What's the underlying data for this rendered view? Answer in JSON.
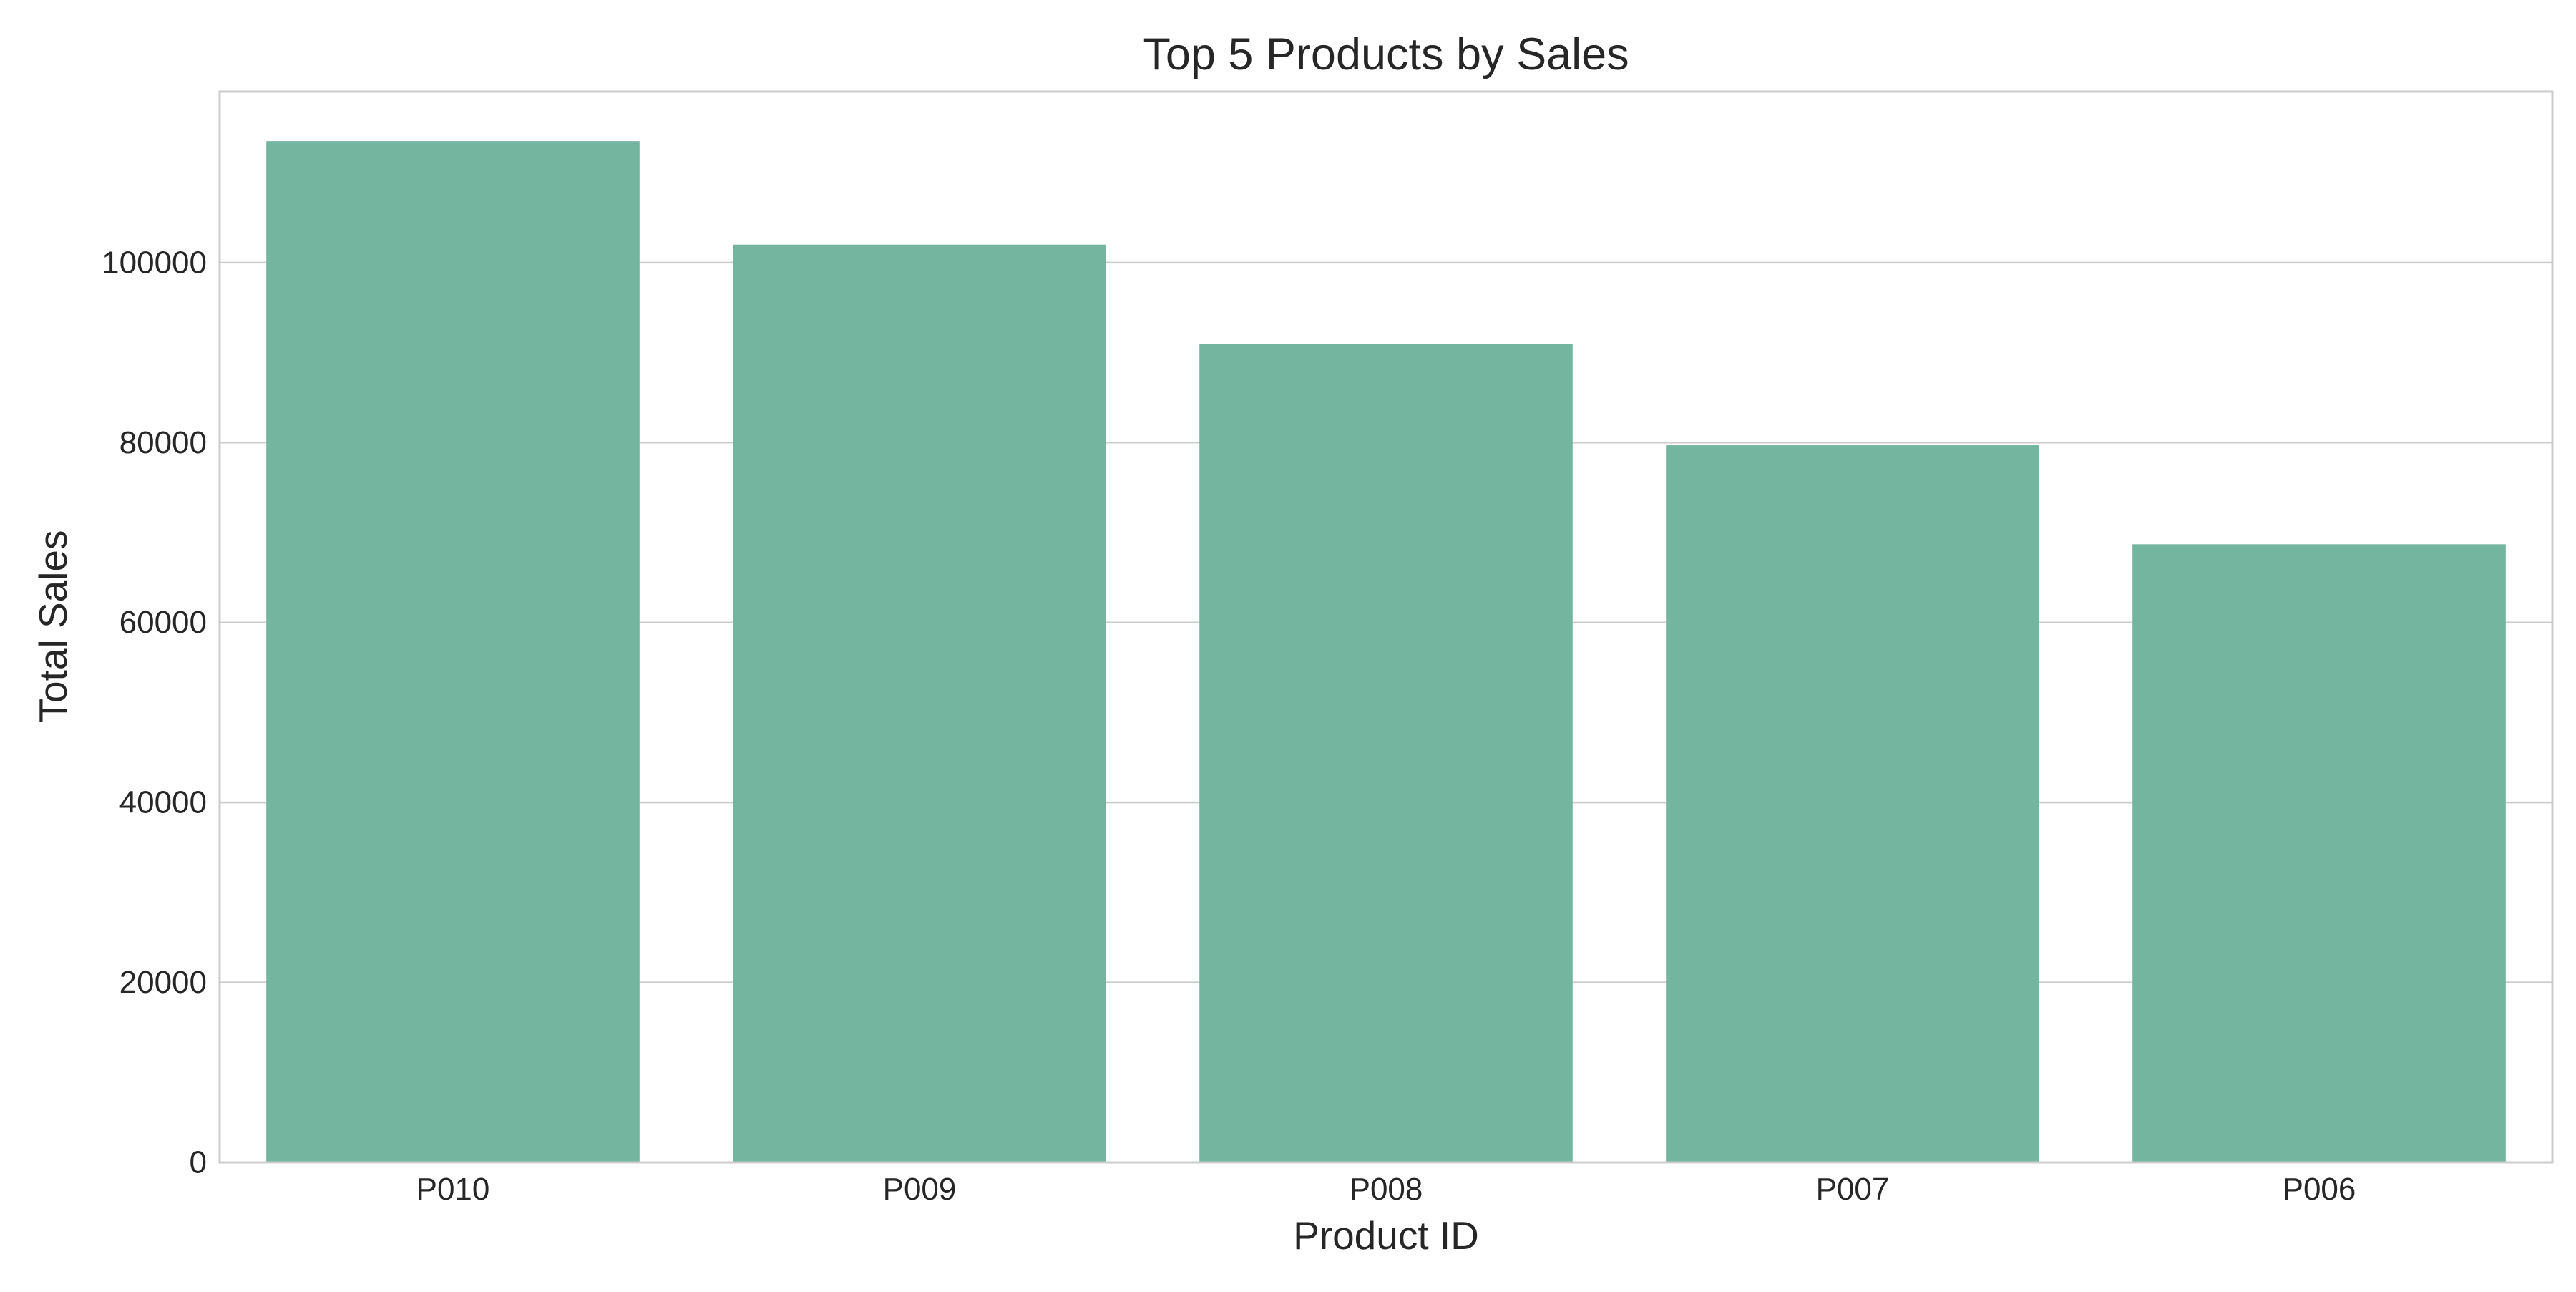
{
  "chart_data": {
    "type": "bar",
    "title": "Top 5 Products by Sales",
    "xlabel": "Product ID",
    "ylabel": "Total Sales",
    "categories": [
      "P010",
      "P009",
      "P008",
      "P007",
      "P006"
    ],
    "values": [
      113500,
      102000,
      91000,
      79700,
      68700
    ],
    "ylim": [
      0,
      119000
    ],
    "yticks": [
      0,
      20000,
      40000,
      60000,
      80000,
      100000
    ],
    "grid": true,
    "legend": "none",
    "colors": {
      "bar": "#74b5a0",
      "grid": "#cccccc",
      "frame": "#cccccc",
      "text": "#262626",
      "background": "#ffffff"
    }
  }
}
